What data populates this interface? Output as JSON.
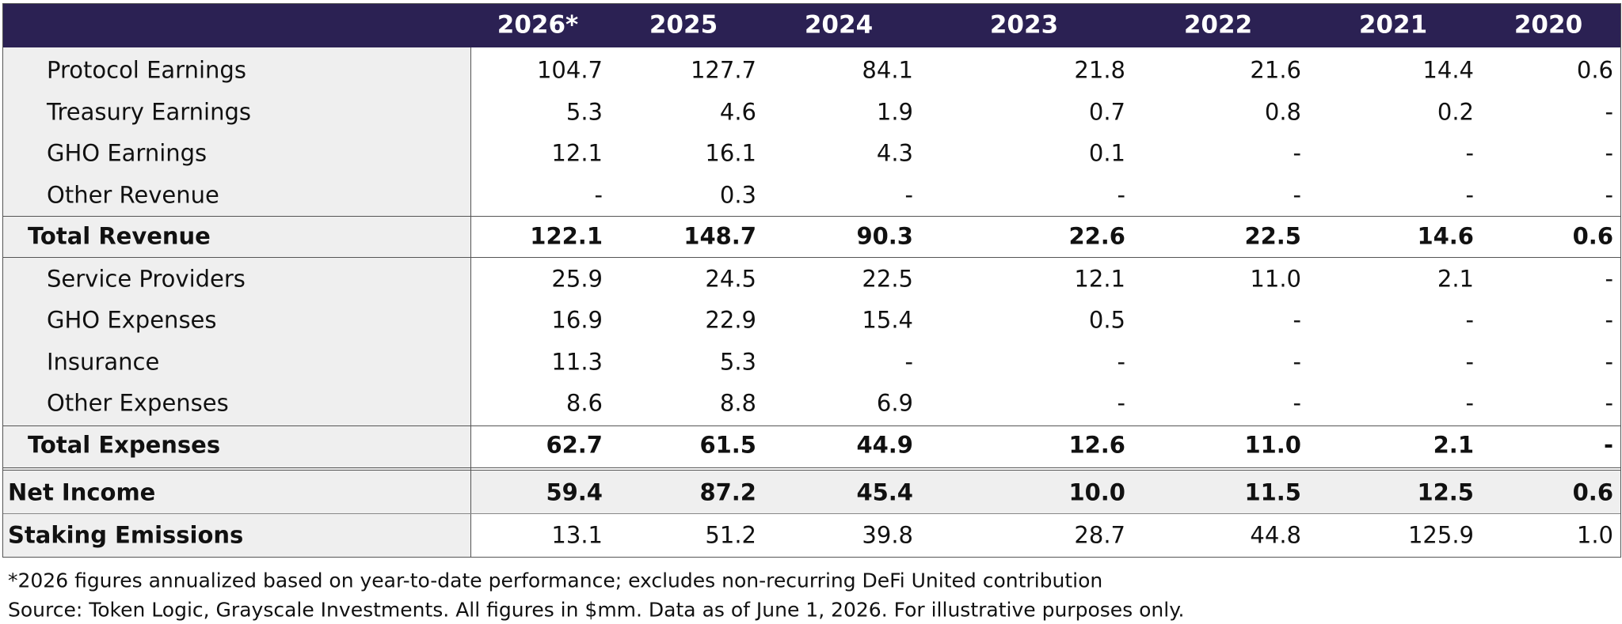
{
  "table": {
    "columns": [
      "2026*",
      "2025",
      "2024",
      "2023",
      "2022",
      "2021",
      "2020"
    ],
    "sections": [
      {
        "rows": [
          {
            "label": "Protocol Earnings",
            "values": [
              "104.7",
              "127.7",
              "84.1",
              "21.8",
              "21.6",
              "14.4",
              "0.6"
            ]
          },
          {
            "label": "Treasury Earnings",
            "values": [
              "5.3",
              "4.6",
              "1.9",
              "0.7",
              "0.8",
              "0.2",
              "-"
            ]
          },
          {
            "label": "GHO Earnings",
            "values": [
              "12.1",
              "16.1",
              "4.3",
              "0.1",
              "-",
              "-",
              "-"
            ]
          },
          {
            "label": "Other Revenue",
            "values": [
              "-",
              "0.3",
              "-",
              "-",
              "-",
              "-",
              "-"
            ]
          }
        ],
        "total": {
          "label": "Total Revenue",
          "values": [
            "122.1",
            "148.7",
            "90.3",
            "22.6",
            "22.5",
            "14.6",
            "0.6"
          ]
        }
      },
      {
        "rows": [
          {
            "label": "Service Providers",
            "values": [
              "25.9",
              "24.5",
              "22.5",
              "12.1",
              "11.0",
              "2.1",
              "-"
            ]
          },
          {
            "label": "GHO Expenses",
            "values": [
              "16.9",
              "22.9",
              "15.4",
              "0.5",
              "-",
              "-",
              "-"
            ]
          },
          {
            "label": "Insurance",
            "values": [
              "11.3",
              "5.3",
              "-",
              "-",
              "-",
              "-",
              "-"
            ]
          },
          {
            "label": "Other Expenses",
            "values": [
              "8.6",
              "8.8",
              "6.9",
              "-",
              "-",
              "-",
              "-"
            ]
          }
        ],
        "total": {
          "label": "Total Expenses",
          "values": [
            "62.7",
            "61.5",
            "44.9",
            "12.6",
            "11.0",
            "2.1",
            "-"
          ]
        }
      }
    ],
    "net_income": {
      "label": "Net Income",
      "values": [
        "59.4",
        "87.2",
        "45.4",
        "10.0",
        "11.5",
        "12.5",
        "0.6"
      ]
    },
    "staking_emissions": {
      "label": "Staking Emissions",
      "values": [
        "13.1",
        "51.2",
        "39.8",
        "28.7",
        "44.8",
        "125.9",
        "1.0"
      ]
    }
  },
  "footnotes": [
    "*2026 figures annualized based on year-to-date performance; excludes non-recurring DeFi United contribution",
    "Source: Token Logic, Grayscale Investments. All figures in $mm. Data as of June 1, 2026. For illustrative purposes only."
  ]
}
